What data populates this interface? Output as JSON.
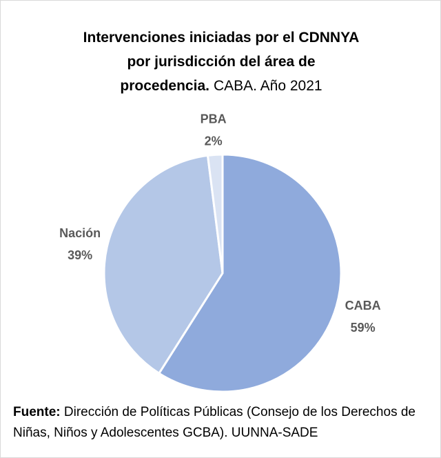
{
  "chart_data": {
    "type": "pie",
    "title_lines": [
      "Intervenciones iniciadas por el CDNNYA",
      "por jurisdicción del área de",
      "procedencia."
    ],
    "subtitle": "CABA. Año 2021",
    "categories": [
      "CABA",
      "Nación",
      "PBA"
    ],
    "values": [
      59,
      39,
      2
    ],
    "value_labels": [
      "59%",
      "39%",
      "2%"
    ],
    "colors": [
      "#8faadc",
      "#b4c7e7",
      "#dae3f3"
    ],
    "source_label": "Fuente:",
    "source": "Dirección de Políticas Públicas (Consejo de los Derechos de Niñas, Niños y Adolescentes GCBA). UUNNA-SADE"
  }
}
